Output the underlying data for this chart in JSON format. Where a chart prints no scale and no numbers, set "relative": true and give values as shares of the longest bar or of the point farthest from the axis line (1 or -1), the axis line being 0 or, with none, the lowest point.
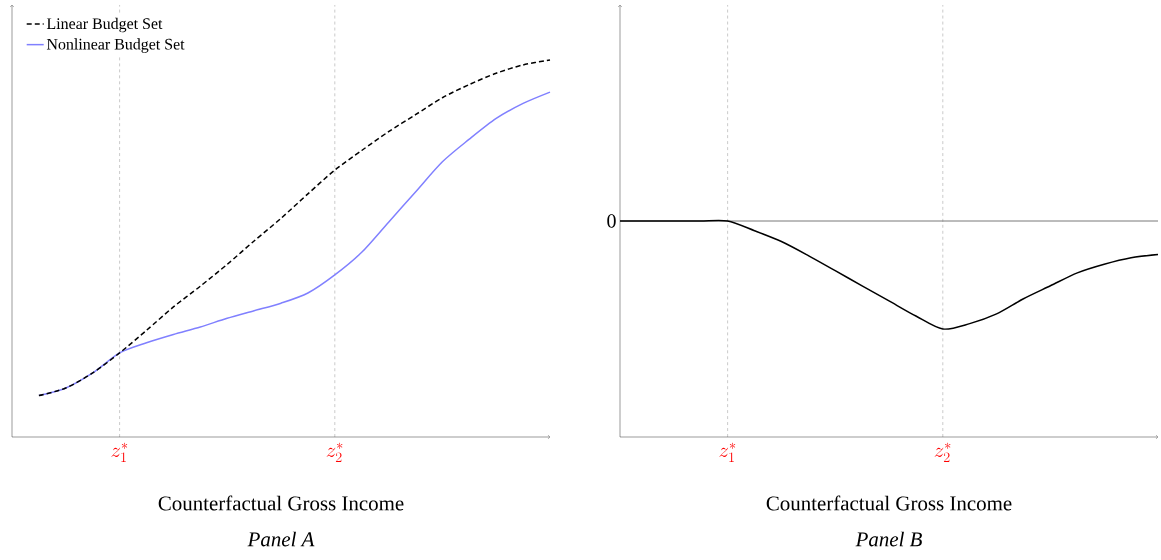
{
  "chart_data": [
    {
      "type": "line",
      "relative": true,
      "xlabel": "Counterfactual Gross Income",
      "title": "Panel A",
      "legend": "top left",
      "grid": "x",
      "tick_labels": "x",
      "marker": "none",
      "categories": [
        null,
        null,
        null,
        null,
        "z_1^*",
        null,
        null,
        null,
        null,
        null,
        null,
        null,
        "z_2^*",
        null,
        null,
        null,
        null,
        null,
        null,
        null,
        null
      ],
      "series": [
        {
          "name": "Linear Budget Set",
          "color": "#000000",
          "line_style": "dashed",
          "values": [
            null,
            0.11,
            0.13,
            0.17,
            0.223,
            0.283,
            0.345,
            0.4,
            0.458,
            0.52,
            0.58,
            0.645,
            0.708,
            0.76,
            0.81,
            0.855,
            0.9,
            0.935,
            0.965,
            0.987,
            1.0
          ]
        },
        {
          "name": "Nonlinear Budget Set",
          "color": "#8080ff",
          "line_style": "solid",
          "values": [
            null,
            0.11,
            0.13,
            0.17,
            0.223,
            0.25,
            0.272,
            0.292,
            0.315,
            0.335,
            0.355,
            0.382,
            0.43,
            0.49,
            0.57,
            0.65,
            0.73,
            0.79,
            0.845,
            0.885,
            0.915
          ]
        }
      ]
    },
    {
      "type": "line",
      "relative": true,
      "xlabel": "Counterfactual Gross Income",
      "title": "Panel B",
      "grid": "x",
      "tick_labels": "x",
      "marker": "none",
      "categories": [
        null,
        null,
        null,
        null,
        "z_1^*",
        null,
        null,
        null,
        null,
        null,
        null,
        null,
        "z_2^*",
        null,
        null,
        null,
        null,
        null,
        null,
        null,
        null
      ],
      "ref_lines": [
        {
          "axis": "y",
          "value": 0,
          "label": "0",
          "color": "#555555"
        }
      ],
      "series": [
        {
          "color": "#000000",
          "line_style": "solid",
          "values": [
            0,
            0,
            0,
            0,
            0,
            -0.09,
            -0.19,
            -0.32,
            -0.46,
            -0.6,
            -0.74,
            -0.88,
            -1,
            -0.95,
            -0.86,
            -0.72,
            -0.6,
            -0.48,
            -0.4,
            -0.34,
            -0.31
          ]
        }
      ]
    }
  ]
}
